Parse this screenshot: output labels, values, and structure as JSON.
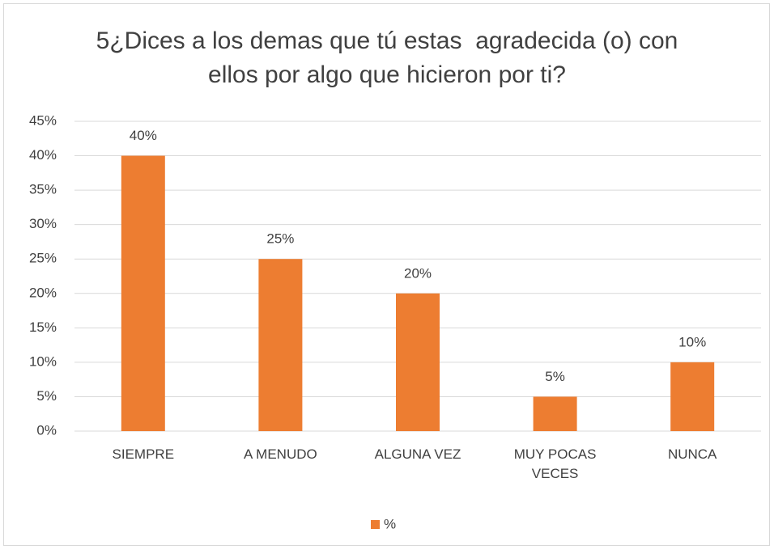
{
  "chart_data": {
    "type": "bar",
    "title": "5¿Dices a los demas que tú estas  agradecida (o) con ellos por algo que hicieron por ti?",
    "categories": [
      "SIEMPRE",
      "A MENUDO",
      "ALGUNA VEZ",
      "MUY POCAS VECES",
      "NUNCA"
    ],
    "series": [
      {
        "name": "%",
        "color": "#ed7d31",
        "values": [
          40,
          25,
          20,
          5,
          10
        ],
        "value_labels": [
          "40%",
          "25%",
          "20%",
          "5%",
          "10%"
        ]
      }
    ],
    "ylim": [
      0,
      45
    ],
    "yticks": [
      {
        "value": 0,
        "label": "0%"
      },
      {
        "value": 5,
        "label": "5%"
      },
      {
        "value": 10,
        "label": "10%"
      },
      {
        "value": 15,
        "label": "15%"
      },
      {
        "value": 20,
        "label": "20%"
      },
      {
        "value": 25,
        "label": "25%"
      },
      {
        "value": 30,
        "label": "30%"
      },
      {
        "value": 35,
        "label": "35%"
      },
      {
        "value": 40,
        "label": "40%"
      },
      {
        "value": 45,
        "label": "45%"
      }
    ],
    "grid": true,
    "legend": "bottom"
  }
}
